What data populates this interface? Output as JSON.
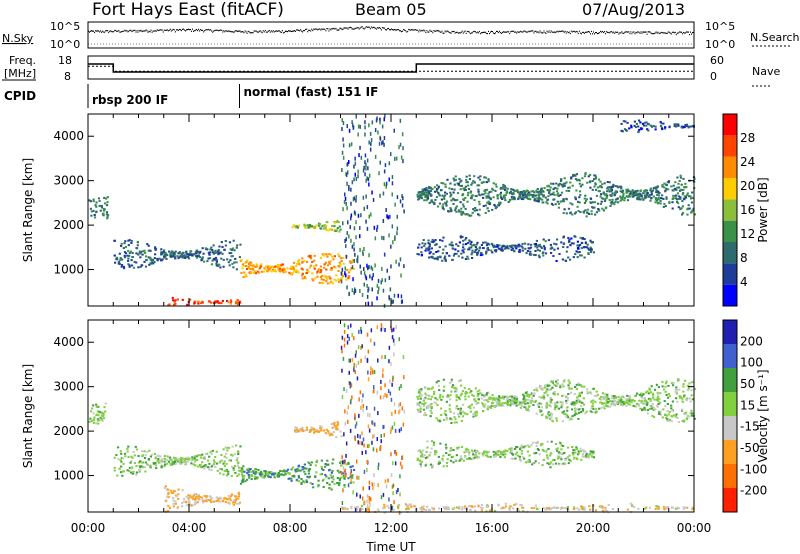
{
  "header": {
    "station": "Fort Hays East (fitACF)",
    "beam": "Beam 05",
    "date": "07/Aug/2013"
  },
  "noise_panel": {
    "left_label": "N.Sky",
    "right_label": "N.Search",
    "left_ticks": [
      "10^5",
      "10^0"
    ],
    "right_ticks": [
      "10^5",
      "10^0"
    ]
  },
  "freq_panel": {
    "left_label_line1": "Freq.",
    "left_label_line2": "[MHz]",
    "right_label": "Nave",
    "left_ticks": [
      "18",
      "8"
    ],
    "right_ticks": [
      "60",
      "0"
    ]
  },
  "cpid": {
    "label": "CPID",
    "segments": [
      {
        "label": "rbsp 200 IF",
        "start_hour": 0
      },
      {
        "label": "normal (fast) 151 IF",
        "start_hour": 6
      }
    ]
  },
  "x_axis": {
    "label": "Time UT",
    "ticks": [
      "00:00",
      "04:00",
      "08:00",
      "12:00",
      "16:00",
      "20:00",
      "00:00"
    ]
  },
  "power_panel": {
    "ylabel": "Slant Range [km]",
    "yticks": [
      "1000",
      "2000",
      "3000",
      "4000"
    ],
    "colorbar_label": "Power [dB]",
    "colorbar_ticks": [
      "4",
      "8",
      "12",
      "16",
      "20",
      "24",
      "28"
    ],
    "colors": [
      "#0000ff",
      "#1e3c9b",
      "#2e6b6e",
      "#3a9147",
      "#8bbf3a",
      "#ffcc00",
      "#ff8c00",
      "#ff4400",
      "#ff0000"
    ]
  },
  "velocity_panel": {
    "ylabel": "Slant Range [km]",
    "yticks": [
      "1000",
      "2000",
      "3000",
      "4000"
    ],
    "colorbar_label": "Velocity [m s⁻¹]",
    "colorbar_ticks": [
      "200",
      "100",
      "50",
      "15",
      "-15",
      "-50",
      "-100",
      "-200"
    ],
    "colors": [
      "#2020b0",
      "#4060d0",
      "#40a040",
      "#80d040",
      "#c8c8c8",
      "#ffa020",
      "#ff7000",
      "#ff2000"
    ]
  },
  "chart_data": [
    {
      "type": "line",
      "title": "Fort Hays East (fitACF) Beam 05 07/Aug/2013",
      "series": [
        {
          "name": "N.Sky",
          "x": [
            0,
            2,
            4,
            6,
            8,
            10,
            11,
            12,
            14,
            16,
            18,
            20,
            22,
            24
          ],
          "values": [
            2000,
            3000,
            5000,
            2000,
            2500,
            8000,
            20000,
            5000,
            2000,
            1500,
            2000,
            1500,
            1200,
            1000
          ]
        }
      ]
    },
    {
      "type": "line",
      "series": [
        {
          "name": "Freq.",
          "x": [
            0,
            1,
            1,
            13,
            13,
            24
          ],
          "values": [
            15,
            15,
            11,
            11,
            15,
            15
          ]
        },
        {
          "name": "Nave",
          "x": [
            0,
            1,
            1,
            24
          ],
          "values": [
            35,
            35,
            20,
            20
          ]
        }
      ]
    },
    {
      "type": "heatmap",
      "xlabel": "Time UT",
      "ylabel": "Slant Range [km]",
      "xlim": [
        0,
        24
      ],
      "ylim": [
        180,
        4500
      ],
      "colorbar": {
        "label": "Power [dB]",
        "range": [
          0,
          32
        ]
      },
      "features": [
        {
          "x_start": 0.0,
          "x_end": 0.8,
          "range_start": 2100,
          "range_end": 2700,
          "power": 10
        },
        {
          "x_start": 1.0,
          "x_end": 6.0,
          "range_start": 1000,
          "range_end": 1700,
          "power": 8
        },
        {
          "x_start": 3.0,
          "x_end": 6.0,
          "range_start": 180,
          "range_end": 400,
          "power": 28
        },
        {
          "x_start": 6.0,
          "x_end": 10.5,
          "range_start": 700,
          "range_end": 1400,
          "power": 22
        },
        {
          "x_start": 8.0,
          "x_end": 10.0,
          "range_start": 1800,
          "range_end": 2200,
          "power": 16
        },
        {
          "x_start": 13.0,
          "x_end": 24.0,
          "range_start": 2200,
          "range_end": 3200,
          "power": 10
        },
        {
          "x_start": 13.0,
          "x_end": 20.0,
          "range_start": 1200,
          "range_end": 1800,
          "power": 7
        },
        {
          "x_start": 21.0,
          "x_end": 24.0,
          "range_start": 4100,
          "range_end": 4400,
          "power": 6
        }
      ]
    },
    {
      "type": "heatmap",
      "xlabel": "Time UT",
      "ylabel": "Slant Range [km]",
      "xlim": [
        0,
        24
      ],
      "ylim": [
        180,
        4500
      ],
      "colorbar": {
        "label": "Velocity [m s⁻¹]",
        "range": [
          -200,
          200
        ]
      },
      "features": [
        {
          "x_start": 0.0,
          "x_end": 0.8,
          "range_start": 2100,
          "range_end": 2700,
          "velocity": 0
        },
        {
          "x_start": 1.0,
          "x_end": 6.0,
          "range_start": 1000,
          "range_end": 1700,
          "velocity": 0
        },
        {
          "x_start": 3.0,
          "x_end": 6.0,
          "range_start": 180,
          "range_end": 800,
          "velocity": -50
        },
        {
          "x_start": 6.0,
          "x_end": 10.5,
          "range_start": 700,
          "range_end": 1400,
          "velocity": 30
        },
        {
          "x_start": 8.0,
          "x_end": 10.0,
          "range_start": 1800,
          "range_end": 2300,
          "velocity": -60
        },
        {
          "x_start": 10.0,
          "x_end": 24.0,
          "range_start": 180,
          "range_end": 400,
          "velocity": -40
        },
        {
          "x_start": 13.0,
          "x_end": 24.0,
          "range_start": 2200,
          "range_end": 3200,
          "velocity": 0
        },
        {
          "x_start": 13.0,
          "x_end": 20.0,
          "range_start": 1200,
          "range_end": 1800,
          "velocity": 0
        }
      ]
    }
  ]
}
